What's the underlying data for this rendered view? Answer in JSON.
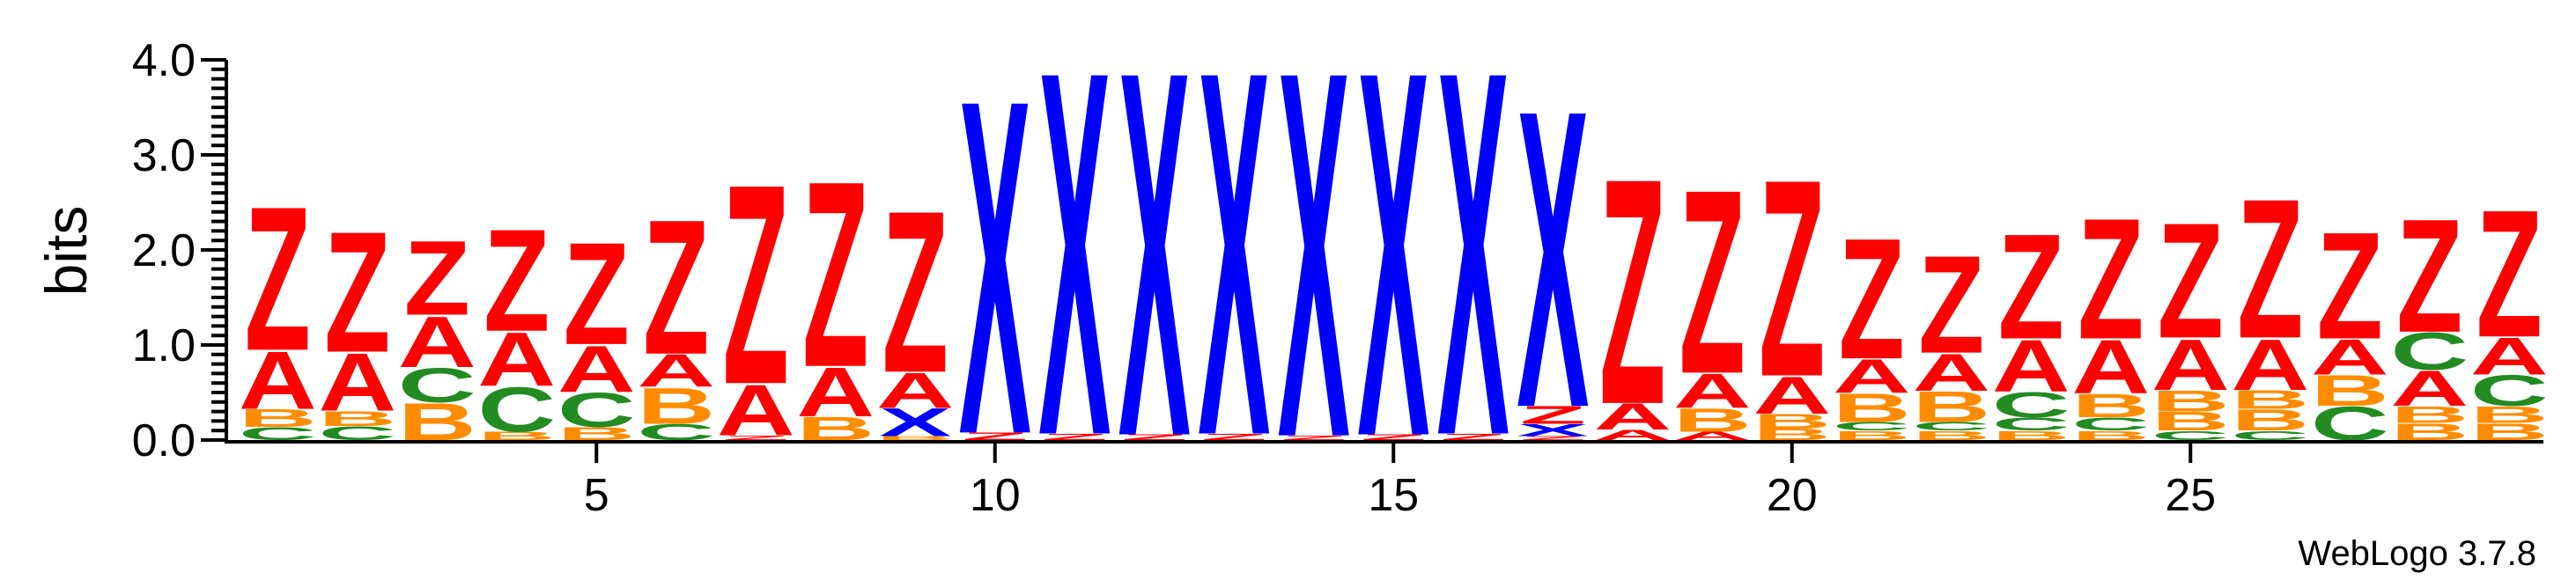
{
  "chart_data": {
    "type": "sequence-logo",
    "title": "",
    "xlabel": "",
    "ylabel": "bits",
    "ylim": [
      0,
      4.0
    ],
    "yticks": [
      "0.0",
      "1.0",
      "2.0",
      "3.0",
      "4.0"
    ],
    "xticks": [
      "5",
      "10",
      "15",
      "20",
      "25"
    ],
    "x_range": [
      1,
      29
    ],
    "credit": "WebLogo 3.7.8",
    "colors": {
      "A": "#ff0000",
      "Z": "#ff0000",
      "B": "#ff8c00",
      "C": "#228b22",
      "X": "#0000ff"
    },
    "positions": [
      {
        "pos": 1,
        "stack": [
          [
            "C",
            0.14
          ],
          [
            "B",
            0.19
          ],
          [
            "A",
            0.62
          ],
          [
            "Z",
            1.55
          ]
        ]
      },
      {
        "pos": 2,
        "stack": [
          [
            "C",
            0.15
          ],
          [
            "B",
            0.16
          ],
          [
            "A",
            0.62
          ],
          [
            "Z",
            1.3
          ]
        ]
      },
      {
        "pos": 3,
        "stack": [
          [
            "B",
            0.4
          ],
          [
            "C",
            0.37
          ],
          [
            "A",
            0.55
          ],
          [
            "Z",
            0.8
          ]
        ]
      },
      {
        "pos": 4,
        "stack": [
          [
            "B",
            0.09
          ],
          [
            "C",
            0.48
          ],
          [
            "A",
            0.58
          ],
          [
            "Z",
            1.1
          ]
        ]
      },
      {
        "pos": 5,
        "stack": [
          [
            "B",
            0.14
          ],
          [
            "C",
            0.37
          ],
          [
            "A",
            0.5
          ],
          [
            "Z",
            1.1
          ]
        ]
      },
      {
        "pos": 6,
        "stack": [
          [
            "C",
            0.17
          ],
          [
            "B",
            0.39
          ],
          [
            "A",
            0.35
          ],
          [
            "Z",
            1.45
          ]
        ]
      },
      {
        "pos": 7,
        "stack": [
          [
            "Z",
            0.05
          ],
          [
            "A",
            0.55
          ],
          [
            "Z",
            2.15
          ]
        ]
      },
      {
        "pos": 8,
        "stack": [
          [
            "B",
            0.25
          ],
          [
            "A",
            0.53
          ],
          [
            "Z",
            2.0
          ]
        ]
      },
      {
        "pos": 9,
        "stack": [
          [
            "B",
            0.04
          ],
          [
            "X",
            0.3
          ],
          [
            "A",
            0.38
          ],
          [
            "Z",
            1.74
          ]
        ]
      },
      {
        "pos": 10,
        "stack": [
          [
            "Z",
            0.08
          ],
          [
            "X",
            3.6
          ]
        ]
      },
      {
        "pos": 11,
        "stack": [
          [
            "Z",
            0.07
          ],
          [
            "X",
            3.92
          ]
        ]
      },
      {
        "pos": 12,
        "stack": [
          [
            "Z",
            0.06
          ],
          [
            "X",
            3.93
          ]
        ]
      },
      {
        "pos": 13,
        "stack": [
          [
            "Z",
            0.07
          ],
          [
            "X",
            3.92
          ]
        ]
      },
      {
        "pos": 14,
        "stack": [
          [
            "Z",
            0.05
          ],
          [
            "X",
            3.94
          ]
        ]
      },
      {
        "pos": 15,
        "stack": [
          [
            "Z",
            0.06
          ],
          [
            "X",
            3.93
          ]
        ]
      },
      {
        "pos": 16,
        "stack": [
          [
            "Z",
            0.07
          ],
          [
            "X",
            3.92
          ]
        ]
      },
      {
        "pos": 17,
        "stack": [
          [
            "Z",
            0.04
          ],
          [
            "X",
            0.13
          ],
          [
            "Z",
            0.19
          ],
          [
            "X",
            3.2
          ]
        ]
      },
      {
        "pos": 18,
        "stack": [
          [
            "A",
            0.11
          ],
          [
            "A",
            0.28
          ],
          [
            "Z",
            2.43
          ]
        ]
      },
      {
        "pos": 19,
        "stack": [
          [
            "A",
            0.09
          ],
          [
            "B",
            0.25
          ],
          [
            "A",
            0.37
          ],
          [
            "Z",
            1.98
          ]
        ]
      },
      {
        "pos": 20,
        "stack": [
          [
            "B",
            0.12
          ],
          [
            "B",
            0.16
          ],
          [
            "A",
            0.4
          ],
          [
            "Z",
            2.12
          ]
        ]
      },
      {
        "pos": 21,
        "stack": [
          [
            "B",
            0.1
          ],
          [
            "C",
            0.09
          ],
          [
            "B",
            0.31
          ],
          [
            "A",
            0.36
          ],
          [
            "Z",
            1.3
          ]
        ]
      },
      {
        "pos": 22,
        "stack": [
          [
            "B",
            0.1
          ],
          [
            "C",
            0.09
          ],
          [
            "B",
            0.33
          ],
          [
            "A",
            0.4
          ],
          [
            "Z",
            1.05
          ]
        ]
      },
      {
        "pos": 23,
        "stack": [
          [
            "B",
            0.1
          ],
          [
            "C",
            0.14
          ],
          [
            "C",
            0.27
          ],
          [
            "A",
            0.56
          ],
          [
            "Z",
            1.13
          ]
        ]
      },
      {
        "pos": 24,
        "stack": [
          [
            "B",
            0.1
          ],
          [
            "C",
            0.14
          ],
          [
            "B",
            0.25
          ],
          [
            "A",
            0.58
          ],
          [
            "Z",
            1.3
          ]
        ]
      },
      {
        "pos": 25,
        "stack": [
          [
            "C",
            0.1
          ],
          [
            "B",
            0.2
          ],
          [
            "B",
            0.23
          ],
          [
            "A",
            0.55
          ],
          [
            "Z",
            1.24
          ]
        ]
      },
      {
        "pos": 26,
        "stack": [
          [
            "C",
            0.1
          ],
          [
            "B",
            0.23
          ],
          [
            "B",
            0.2
          ],
          [
            "A",
            0.55
          ],
          [
            "Z",
            1.5
          ]
        ]
      },
      {
        "pos": 27,
        "stack": [
          [
            "C",
            0.36
          ],
          [
            "B",
            0.33
          ],
          [
            "A",
            0.38
          ],
          [
            "Z",
            1.15
          ]
        ]
      },
      {
        "pos": 28,
        "stack": [
          [
            "B",
            0.18
          ],
          [
            "B",
            0.18
          ],
          [
            "A",
            0.38
          ],
          [
            "C",
            0.4
          ],
          [
            "Z",
            1.22
          ]
        ]
      },
      {
        "pos": 29,
        "stack": [
          [
            "B",
            0.18
          ],
          [
            "B",
            0.18
          ],
          [
            "C",
            0.33
          ],
          [
            "A",
            0.4
          ],
          [
            "Z",
            1.37
          ]
        ]
      }
    ]
  }
}
